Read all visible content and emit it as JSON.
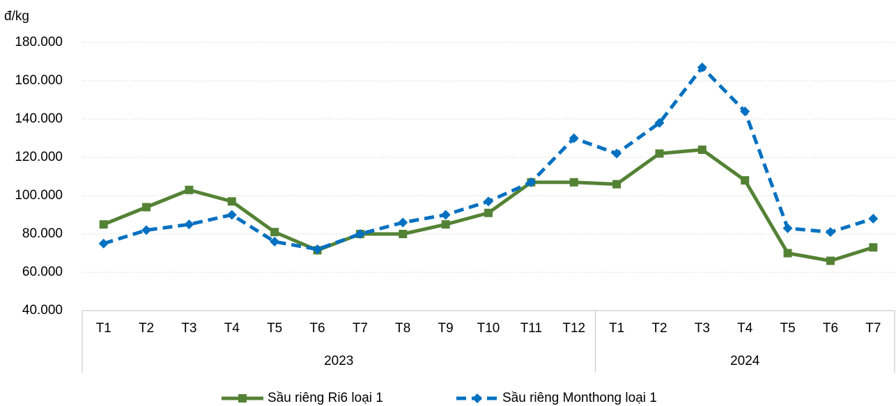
{
  "chart_data": {
    "type": "line",
    "y_unit": "đ/kg",
    "categories": [
      "T1",
      "T2",
      "T3",
      "T4",
      "T5",
      "T6",
      "T7",
      "T8",
      "T9",
      "T10",
      "T11",
      "T12",
      "T1",
      "T2",
      "T3",
      "T4",
      "T5",
      "T6",
      "T7"
    ],
    "x_groups": [
      "2023",
      "2024"
    ],
    "series": [
      {
        "name": "Sầu riêng Ri6 loại 1",
        "color": "#548235",
        "dash": false,
        "marker": "square",
        "values": [
          85000,
          94000,
          103000,
          97000,
          81000,
          71500,
          80000,
          80000,
          85000,
          91000,
          107000,
          107000,
          106000,
          122000,
          124000,
          108000,
          70000,
          66000,
          73000
        ]
      },
      {
        "name": "Sầu riêng Monthong loại 1",
        "color": "#0070c0",
        "dash": true,
        "marker": "diamond",
        "values": [
          75000,
          82000,
          85000,
          90000,
          76000,
          72000,
          80000,
          86000,
          90000,
          97000,
          107000,
          130000,
          122000,
          138000,
          167000,
          144000,
          83000,
          81000,
          88000
        ]
      }
    ],
    "ylim": [
      40000,
      180000
    ],
    "yticks": [
      {
        "value": 40000,
        "label": "40.000"
      },
      {
        "value": 60000,
        "label": "60.000"
      },
      {
        "value": 80000,
        "label": "80.000"
      },
      {
        "value": 100000,
        "label": "100.000"
      },
      {
        "value": 120000,
        "label": "120.000"
      },
      {
        "value": 140000,
        "label": "140.000"
      },
      {
        "value": 160000,
        "label": "160.000"
      },
      {
        "value": 180000,
        "label": "180.000"
      }
    ],
    "grid": true,
    "legend": "bottom"
  }
}
